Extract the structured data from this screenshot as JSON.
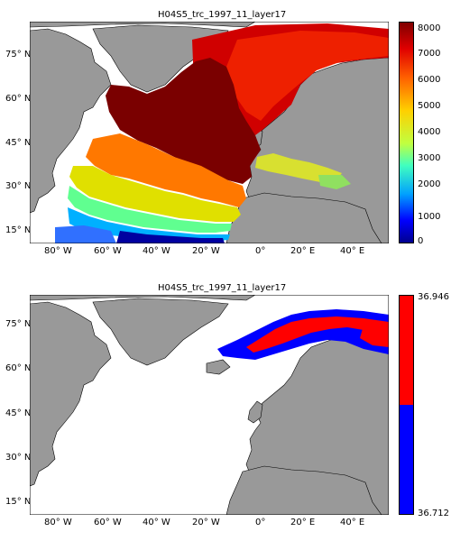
{
  "panels": [
    {
      "id": "top",
      "title": "H04S5_trc_1997_11_layer17",
      "lat_ticks": [
        "75° N",
        "60° N",
        "45° N",
        "30° N",
        "15° N"
      ],
      "lon_ticks": [
        "80° W",
        "60° W",
        "40° W",
        "20° W",
        "0°",
        "20° E",
        "40° E"
      ],
      "colorbar": {
        "colormap": "jet",
        "range": [
          0,
          8000
        ],
        "tick_labels": [
          "8000",
          "7000",
          "6000",
          "5000",
          "4000",
          "3000",
          "2000",
          "1000",
          "0"
        ],
        "colors": [
          "#00008f",
          "#0000ff",
          "#00a0ff",
          "#40ffbf",
          "#c0ff40",
          "#ffd000",
          "#ff6000",
          "#e00000",
          "#800000"
        ]
      }
    },
    {
      "id": "bottom",
      "title": "H04S5_trc_1997_11_layer17",
      "lat_ticks": [
        "75° N",
        "60° N",
        "45° N",
        "30° N",
        "15° N"
      ],
      "lon_ticks": [
        "80° W",
        "60° W",
        "40° W",
        "20° W",
        "0°",
        "20° E",
        "40° E"
      ],
      "colorbar": {
        "top_label": "36.946",
        "bottom_label": "36.712",
        "colors": [
          "#ff0000",
          "#0000ff"
        ]
      }
    }
  ],
  "colors": {
    "land": "#999999",
    "coast": "#000000",
    "background": "#ffffff"
  }
}
